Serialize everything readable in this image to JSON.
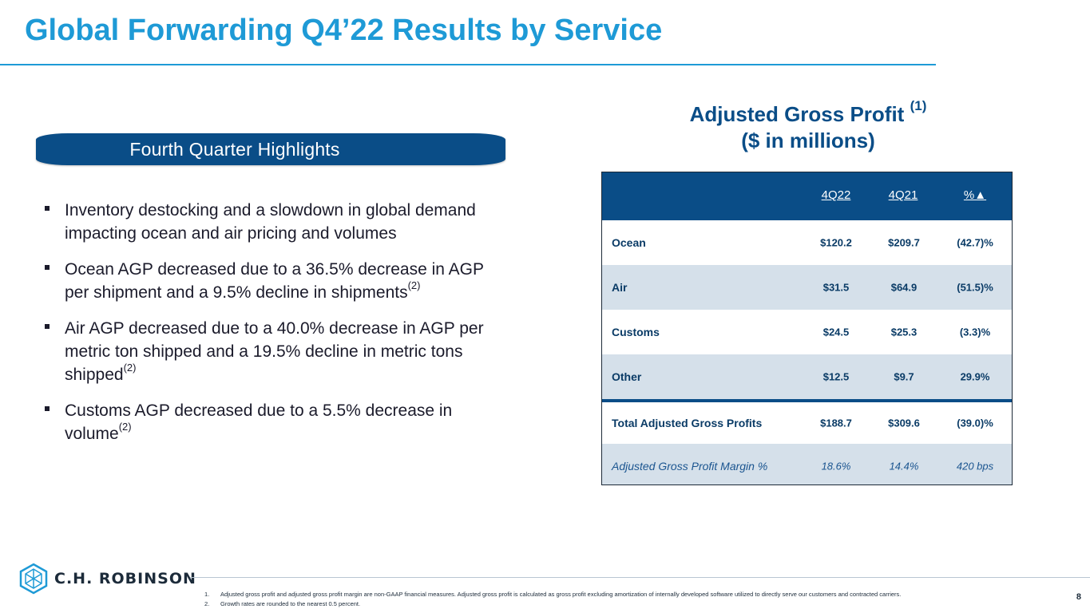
{
  "title": "Global Forwarding Q4’22 Results by Service",
  "banner": "Fourth Quarter Highlights",
  "bullets": [
    {
      "text": "Inventory destocking and a slowdown in global demand impacting ocean and air pricing and volumes",
      "sup": ""
    },
    {
      "text": "Ocean AGP decreased due to a 36.5% decrease in AGP per shipment and a 9.5% decline in shipments",
      "sup": "(2)"
    },
    {
      "text": "Air AGP decreased due to a 40.0% decrease in AGP per metric ton shipped and a 19.5% decline in metric tons shipped",
      "sup": "(2)"
    },
    {
      "text": "Customs AGP decreased due to a 5.5% decrease in volume",
      "sup": "(2)"
    }
  ],
  "agp": {
    "heading_line1": "Adjusted Gross Profit",
    "heading_sup": "(1)",
    "heading_line2": "($ in millions)"
  },
  "table": {
    "columns": [
      "4Q22",
      "4Q21",
      "%▲"
    ],
    "rows": [
      {
        "label": "Ocean",
        "q22": "$120.2",
        "q21": "$209.7",
        "pct": "(42.7)%"
      },
      {
        "label": "Air",
        "q22": "$31.5",
        "q21": "$64.9",
        "pct": "(51.5)%"
      },
      {
        "label": "Customs",
        "q22": "$24.5",
        "q21": "$25.3",
        "pct": "(3.3)%"
      },
      {
        "label": "Other",
        "q22": "$12.5",
        "q21": "$9.7",
        "pct": "29.9%"
      }
    ],
    "total": {
      "label": "Total Adjusted Gross Profits",
      "q22": "$188.7",
      "q21": "$309.6",
      "pct": "(39.0)%"
    },
    "margin": {
      "label": "Adjusted Gross Profit Margin %",
      "q22": "18.6%",
      "q21": "14.4%",
      "pct": "420 bps"
    }
  },
  "logo_text": "C.H. ROBINSON",
  "footnotes": [
    {
      "num": "1.",
      "text": "Adjusted gross profit and adjusted gross profit margin are non-GAAP financial measures. Adjusted gross profit is calculated as gross profit excluding amortization of internally developed software utilized to directly serve our customers and contracted carriers."
    },
    {
      "num": "2.",
      "text": "Growth rates are rounded to the nearest 0.5 percent."
    }
  ],
  "page_number": "8",
  "colors": {
    "accent": "#1e9ad6",
    "navy": "#0a4d87",
    "row_shade": "#d5e0ea"
  }
}
